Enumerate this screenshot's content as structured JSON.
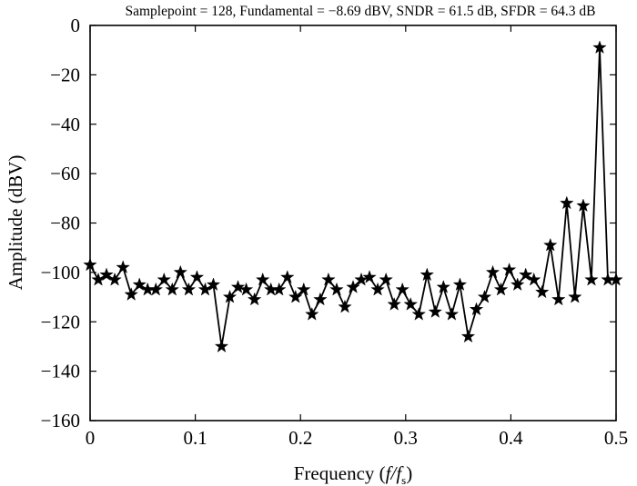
{
  "chart_data": {
    "type": "line",
    "title": "Samplepoint = 128, Fundamental = −8.69 dBV, SNDR = 61.5 dB, SFDR = 64.3 dB",
    "xlabel_prefix": "Frequency (",
    "xlabel_f": "f",
    "xlabel_slash": "/",
    "xlabel_fs": "f",
    "xlabel_sub": "s",
    "xlabel_suffix": ")",
    "ylabel": "Amplitude (dBV)",
    "xlim": [
      0,
      0.5
    ],
    "ylim": [
      -160,
      0
    ],
    "xticks": [
      0,
      0.1,
      0.2,
      0.3,
      0.4,
      0.5
    ],
    "xtick_labels": [
      "0",
      "0.1",
      "0.2",
      "0.3",
      "0.4",
      "0.5"
    ],
    "yticks": [
      0,
      -20,
      -40,
      -60,
      -80,
      -100,
      -120,
      -140,
      -160
    ],
    "ytick_labels": [
      "0",
      "−20",
      "−40",
      "−60",
      "−80",
      "−100",
      "−120",
      "−140",
      "−160"
    ],
    "marker": "star",
    "line_color": "#000000",
    "series": [
      {
        "x": [
          0,
          0.0078,
          0.0156,
          0.0234,
          0.0313,
          0.0391,
          0.0469,
          0.0547,
          0.0625,
          0.0703,
          0.0781,
          0.0859,
          0.0938,
          0.1016,
          0.1094,
          0.1172,
          0.125,
          0.1328,
          0.1406,
          0.1484,
          0.1563,
          0.1641,
          0.1719,
          0.1797,
          0.1875,
          0.1953,
          0.2031,
          0.2109,
          0.2188,
          0.2266,
          0.2344,
          0.2422,
          0.25,
          0.2578,
          0.2656,
          0.2734,
          0.2813,
          0.2891,
          0.2969,
          0.3047,
          0.3125,
          0.3203,
          0.3281,
          0.3359,
          0.3438,
          0.3516,
          0.3594,
          0.3672,
          0.375,
          0.3828,
          0.3906,
          0.3984,
          0.4063,
          0.4141,
          0.4219,
          0.4297,
          0.4375,
          0.4453,
          0.4531,
          0.4609,
          0.4688,
          0.4766,
          0.4844,
          0.4922,
          0.5
        ],
        "values": [
          -97,
          -103,
          -101,
          -103,
          -98,
          -109,
          -105,
          -107,
          -107,
          -103,
          -107,
          -100,
          -107,
          -102,
          -107,
          -105,
          -130,
          -110,
          -106,
          -107,
          -111,
          -103,
          -107,
          -107,
          -102,
          -110,
          -107,
          -117,
          -111,
          -103,
          -107,
          -114,
          -106,
          -103,
          -102,
          -107,
          -103,
          -113,
          -107,
          -113,
          -117,
          -101,
          -116,
          -106,
          -117,
          -105,
          -126,
          -115,
          -110,
          -100,
          -107,
          -99,
          -105,
          -101,
          -103,
          -108,
          -89,
          -111,
          -72,
          -110,
          -73,
          -103,
          -9,
          -103,
          -103
        ]
      }
    ]
  }
}
